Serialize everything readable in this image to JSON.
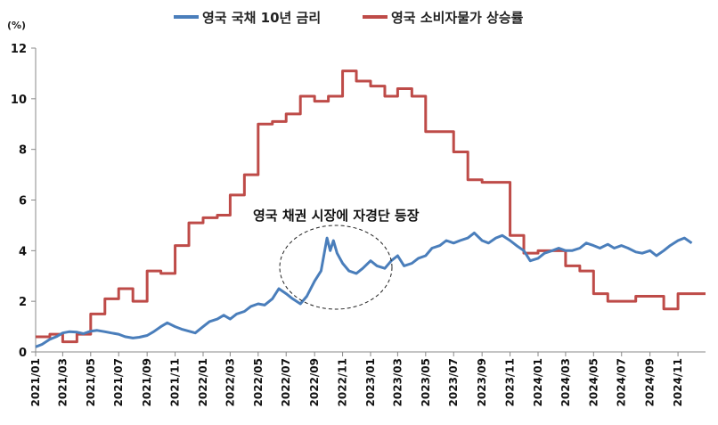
{
  "unit_label": "(%)",
  "colors": {
    "bond": "#4a7ebb",
    "cpi": "#be4b48"
  },
  "legend": {
    "bond": "영국 국채 10년 금리",
    "cpi": "영국 소비자물가 상승률"
  },
  "annotation": "영국 채권 시장에 자경단 등장",
  "chart_data": {
    "type": "line",
    "x_axis": "date",
    "ylim": [
      0,
      12
    ],
    "yticks": [
      0,
      2,
      4,
      6,
      8,
      10,
      12
    ],
    "xticks": [
      "2021/01",
      "2021/03",
      "2021/05",
      "2021/07",
      "2021/09",
      "2021/11",
      "2022/01",
      "2022/03",
      "2022/05",
      "2022/07",
      "2022/09",
      "2022/11",
      "2023/01",
      "2023/03",
      "2023/05",
      "2023/07",
      "2023/09",
      "2023/11",
      "2024/01",
      "2024/03",
      "2024/05",
      "2024/07",
      "2024/09",
      "2024/11"
    ],
    "grid": false,
    "legend_position": "top",
    "series": [
      {
        "name": "영국 국채 10년 금리",
        "style": "line",
        "points": [
          [
            "2021-01-01",
            0.2
          ],
          [
            "2021-01-15",
            0.3
          ],
          [
            "2021-02-01",
            0.5
          ],
          [
            "2021-02-15",
            0.6
          ],
          [
            "2021-03-01",
            0.75
          ],
          [
            "2021-03-15",
            0.8
          ],
          [
            "2021-04-01",
            0.78
          ],
          [
            "2021-04-15",
            0.72
          ],
          [
            "2021-05-01",
            0.82
          ],
          [
            "2021-05-15",
            0.85
          ],
          [
            "2021-06-01",
            0.8
          ],
          [
            "2021-06-15",
            0.75
          ],
          [
            "2021-07-01",
            0.7
          ],
          [
            "2021-07-15",
            0.6
          ],
          [
            "2021-08-01",
            0.55
          ],
          [
            "2021-08-15",
            0.58
          ],
          [
            "2021-09-01",
            0.65
          ],
          [
            "2021-09-15",
            0.8
          ],
          [
            "2021-10-01",
            1.0
          ],
          [
            "2021-10-15",
            1.15
          ],
          [
            "2021-11-01",
            1.0
          ],
          [
            "2021-11-15",
            0.9
          ],
          [
            "2021-12-01",
            0.82
          ],
          [
            "2021-12-15",
            0.75
          ],
          [
            "2022-01-01",
            1.0
          ],
          [
            "2022-01-15",
            1.2
          ],
          [
            "2022-02-01",
            1.3
          ],
          [
            "2022-02-15",
            1.45
          ],
          [
            "2022-03-01",
            1.3
          ],
          [
            "2022-03-15",
            1.5
          ],
          [
            "2022-04-01",
            1.6
          ],
          [
            "2022-04-15",
            1.8
          ],
          [
            "2022-05-01",
            1.9
          ],
          [
            "2022-05-15",
            1.85
          ],
          [
            "2022-06-01",
            2.1
          ],
          [
            "2022-06-15",
            2.5
          ],
          [
            "2022-07-01",
            2.3
          ],
          [
            "2022-07-15",
            2.1
          ],
          [
            "2022-08-01",
            1.9
          ],
          [
            "2022-08-15",
            2.2
          ],
          [
            "2022-09-01",
            2.8
          ],
          [
            "2022-09-15",
            3.2
          ],
          [
            "2022-09-28",
            4.5
          ],
          [
            "2022-10-05",
            4.0
          ],
          [
            "2022-10-12",
            4.4
          ],
          [
            "2022-10-20",
            3.9
          ],
          [
            "2022-11-01",
            3.5
          ],
          [
            "2022-11-15",
            3.2
          ],
          [
            "2022-12-01",
            3.1
          ],
          [
            "2022-12-15",
            3.3
          ],
          [
            "2023-01-01",
            3.6
          ],
          [
            "2023-01-15",
            3.4
          ],
          [
            "2023-02-01",
            3.3
          ],
          [
            "2023-02-15",
            3.6
          ],
          [
            "2023-03-01",
            3.8
          ],
          [
            "2023-03-15",
            3.4
          ],
          [
            "2023-04-01",
            3.5
          ],
          [
            "2023-04-15",
            3.7
          ],
          [
            "2023-05-01",
            3.8
          ],
          [
            "2023-05-15",
            4.1
          ],
          [
            "2023-06-01",
            4.2
          ],
          [
            "2023-06-15",
            4.4
          ],
          [
            "2023-07-01",
            4.3
          ],
          [
            "2023-07-15",
            4.4
          ],
          [
            "2023-08-01",
            4.5
          ],
          [
            "2023-08-15",
            4.7
          ],
          [
            "2023-09-01",
            4.4
          ],
          [
            "2023-09-15",
            4.3
          ],
          [
            "2023-10-01",
            4.5
          ],
          [
            "2023-10-15",
            4.6
          ],
          [
            "2023-11-01",
            4.4
          ],
          [
            "2023-11-15",
            4.2
          ],
          [
            "2023-12-01",
            4.0
          ],
          [
            "2023-12-15",
            3.6
          ],
          [
            "2024-01-01",
            3.7
          ],
          [
            "2024-01-15",
            3.9
          ],
          [
            "2024-02-01",
            4.0
          ],
          [
            "2024-02-15",
            4.1
          ],
          [
            "2024-03-01",
            4.0
          ],
          [
            "2024-03-15",
            4.0
          ],
          [
            "2024-04-01",
            4.1
          ],
          [
            "2024-04-15",
            4.3
          ],
          [
            "2024-05-01",
            4.2
          ],
          [
            "2024-05-15",
            4.1
          ],
          [
            "2024-06-01",
            4.25
          ],
          [
            "2024-06-15",
            4.1
          ],
          [
            "2024-07-01",
            4.2
          ],
          [
            "2024-07-15",
            4.1
          ],
          [
            "2024-08-01",
            3.95
          ],
          [
            "2024-08-15",
            3.9
          ],
          [
            "2024-09-01",
            4.0
          ],
          [
            "2024-09-15",
            3.8
          ],
          [
            "2024-10-01",
            4.0
          ],
          [
            "2024-10-15",
            4.2
          ],
          [
            "2024-11-01",
            4.4
          ],
          [
            "2024-11-15",
            4.5
          ],
          [
            "2024-12-01",
            4.3
          ]
        ]
      },
      {
        "name": "영국 소비자물가 상승률",
        "style": "step",
        "points": [
          [
            "2021-01-01",
            0.6
          ],
          [
            "2021-02-01",
            0.7
          ],
          [
            "2021-03-01",
            0.4
          ],
          [
            "2021-04-01",
            0.7
          ],
          [
            "2021-05-01",
            1.5
          ],
          [
            "2021-06-01",
            2.1
          ],
          [
            "2021-07-01",
            2.5
          ],
          [
            "2021-08-01",
            2.0
          ],
          [
            "2021-09-01",
            3.2
          ],
          [
            "2021-10-01",
            3.1
          ],
          [
            "2021-11-01",
            4.2
          ],
          [
            "2021-12-01",
            5.1
          ],
          [
            "2022-01-01",
            5.3
          ],
          [
            "2022-02-01",
            5.4
          ],
          [
            "2022-03-01",
            6.2
          ],
          [
            "2022-04-01",
            7.0
          ],
          [
            "2022-05-01",
            9.0
          ],
          [
            "2022-06-01",
            9.1
          ],
          [
            "2022-07-01",
            9.4
          ],
          [
            "2022-08-01",
            10.1
          ],
          [
            "2022-09-01",
            9.9
          ],
          [
            "2022-10-01",
            10.1
          ],
          [
            "2022-11-01",
            11.1
          ],
          [
            "2022-12-01",
            10.7
          ],
          [
            "2023-01-01",
            10.5
          ],
          [
            "2023-02-01",
            10.1
          ],
          [
            "2023-03-01",
            10.4
          ],
          [
            "2023-04-01",
            10.1
          ],
          [
            "2023-05-01",
            8.7
          ],
          [
            "2023-06-01",
            8.7
          ],
          [
            "2023-07-01",
            7.9
          ],
          [
            "2023-08-01",
            6.8
          ],
          [
            "2023-09-01",
            6.7
          ],
          [
            "2023-10-01",
            6.7
          ],
          [
            "2023-11-01",
            4.6
          ],
          [
            "2023-12-01",
            3.9
          ],
          [
            "2024-01-01",
            4.0
          ],
          [
            "2024-02-01",
            4.0
          ],
          [
            "2024-03-01",
            3.4
          ],
          [
            "2024-04-01",
            3.2
          ],
          [
            "2024-05-01",
            2.3
          ],
          [
            "2024-06-01",
            2.0
          ],
          [
            "2024-07-01",
            2.0
          ],
          [
            "2024-08-01",
            2.2
          ],
          [
            "2024-09-01",
            2.2
          ],
          [
            "2024-10-01",
            1.7
          ],
          [
            "2024-11-01",
            2.3
          ],
          [
            "2024-12-01",
            2.3
          ]
        ]
      }
    ]
  }
}
